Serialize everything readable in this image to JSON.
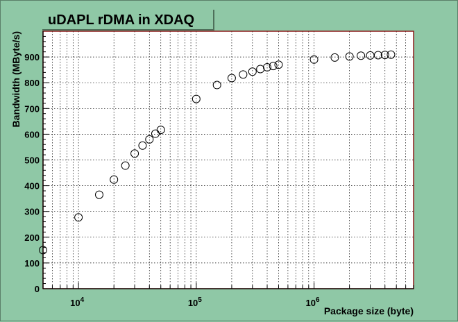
{
  "chart_data": {
    "type": "scatter",
    "title": "uDAPL rDMA in XDAQ",
    "xlabel": "Package size (byte)",
    "ylabel": "Bandwidth (MByte/s)",
    "xscale": "log",
    "xlim": [
      5000,
      7000000
    ],
    "ylim": [
      0,
      1000
    ],
    "grid": true,
    "x_tick_labels": [
      {
        "value": 10000,
        "base": "10",
        "exp": "4"
      },
      {
        "value": 100000,
        "base": "10",
        "exp": "5"
      },
      {
        "value": 1000000,
        "base": "10",
        "exp": "6"
      }
    ],
    "y_ticks": [
      0,
      100,
      200,
      300,
      400,
      500,
      600,
      700,
      800,
      900
    ],
    "series": [
      {
        "marker": "open-circle",
        "color": "#000000",
        "points": [
          {
            "x": 5000,
            "y": 150
          },
          {
            "x": 10000,
            "y": 277
          },
          {
            "x": 15000,
            "y": 365
          },
          {
            "x": 20000,
            "y": 424
          },
          {
            "x": 25000,
            "y": 478
          },
          {
            "x": 30000,
            "y": 525
          },
          {
            "x": 35000,
            "y": 556
          },
          {
            "x": 40000,
            "y": 580
          },
          {
            "x": 45000,
            "y": 602
          },
          {
            "x": 50000,
            "y": 617
          },
          {
            "x": 100000,
            "y": 737
          },
          {
            "x": 150000,
            "y": 791
          },
          {
            "x": 200000,
            "y": 818
          },
          {
            "x": 250000,
            "y": 832
          },
          {
            "x": 300000,
            "y": 843
          },
          {
            "x": 350000,
            "y": 853
          },
          {
            "x": 400000,
            "y": 860
          },
          {
            "x": 450000,
            "y": 865
          },
          {
            "x": 500000,
            "y": 870
          },
          {
            "x": 1000000,
            "y": 890
          },
          {
            "x": 1500000,
            "y": 898
          },
          {
            "x": 2000000,
            "y": 902
          },
          {
            "x": 2500000,
            "y": 905
          },
          {
            "x": 3000000,
            "y": 906
          },
          {
            "x": 3500000,
            "y": 907
          },
          {
            "x": 4000000,
            "y": 908
          },
          {
            "x": 4500000,
            "y": 909
          }
        ]
      }
    ]
  },
  "colors": {
    "background": "#8fc8a6",
    "plot_area": "#ffffff",
    "frame_axis": "#8b1a1a",
    "grid": "#000000"
  }
}
